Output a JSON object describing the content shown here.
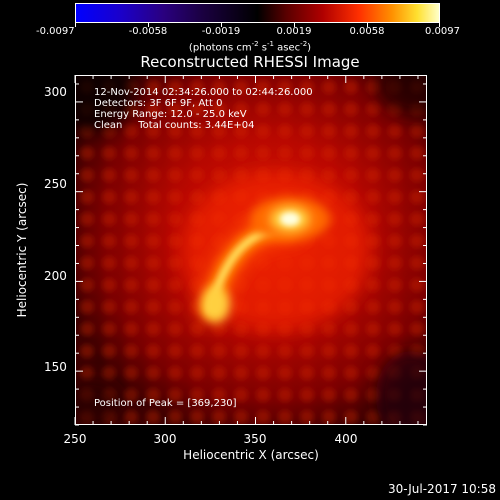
{
  "colorbar": {
    "ticks": [
      "-0.0097",
      "-0.0058",
      "-0.0019",
      "0.0019",
      "0.0058",
      "0.0097"
    ],
    "units_prefix": "(photons cm",
    "units_exp1": "-2",
    "units_mid": " s",
    "units_exp2": "-1",
    "units_mid2": " asec",
    "units_exp3": "-2",
    "units_suffix": ")"
  },
  "plot": {
    "title": "Reconstructed RHESSI Image",
    "info": {
      "time_range": "12-Nov-2014 02:34:26.000 to 02:44:26.000",
      "detectors": "Detectors: 3F 6F 9F, Att 0",
      "energy": "Energy Range: 12.0 - 25.0 keV",
      "clean": "Clean     Total counts: 3.44E+04"
    },
    "peak": "Position of Peak = [369,230]"
  },
  "chart_data": {
    "type": "heatmap",
    "title": "Reconstructed RHESSI Image",
    "xlabel": "Heliocentric X (arcsec)",
    "ylabel": "Heliocentric Y (arcsec)",
    "xlim": [
      250,
      445
    ],
    "ylim": [
      120,
      315
    ],
    "xticks": [
      "250",
      "300",
      "350",
      "400"
    ],
    "yticks": [
      "150",
      "200",
      "250",
      "300"
    ],
    "colorbar_range": [
      -0.0097,
      0.0097
    ],
    "sources": [
      {
        "x": 369,
        "y": 230,
        "label": "peak"
      },
      {
        "x": 325,
        "y": 185
      },
      {
        "x": 345,
        "y": 225
      }
    ]
  },
  "timestamp": "30-Jul-2017 10:58"
}
